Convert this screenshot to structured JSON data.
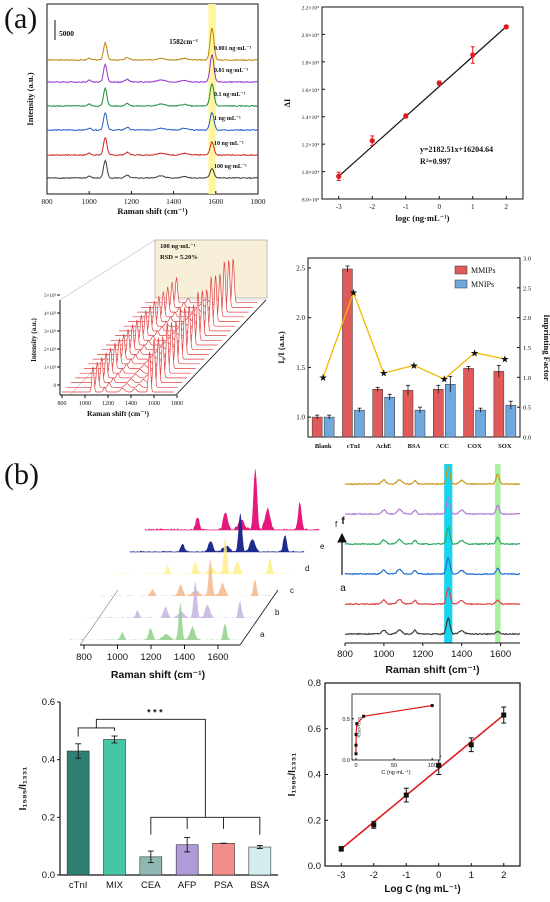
{
  "panel_labels": {
    "a": "(a)",
    "b": "(b)"
  },
  "colors": {
    "raman": [
      "#b8860b",
      "#9b30d0",
      "#1e8c3a",
      "#1f5fc8",
      "#c62828",
      "#3a3a3a"
    ],
    "mmip": "#e05a5a",
    "mnip": "#6fa8dc",
    "factor": "#f5b800",
    "bars_b": [
      "#2f7f72",
      "#45c7a5",
      "#8fb8b2",
      "#b09ad8",
      "#f08c8c",
      "#d4eef0"
    ],
    "line_red": "#e0191c"
  },
  "chart_data": [
    {
      "id": "a1",
      "type": "line",
      "title": "",
      "xlabel": "Raman shift (cm⁻¹)",
      "ylabel": "Intensity (a.u.)",
      "xlim": [
        800,
        1800
      ],
      "xticks": [
        "800",
        "1000",
        "1200",
        "1400",
        "1600",
        "1800"
      ],
      "scale_bar": "5000",
      "annotation": "1582cm⁻¹",
      "peak_positions_cm1": [
        1076,
        1582
      ],
      "series": [
        {
          "name": "0.001 ng·mL⁻¹",
          "peak_1582": 1.0
        },
        {
          "name": "0.01 ng·mL⁻¹",
          "peak_1582": 0.85
        },
        {
          "name": "0.1 ng·mL⁻¹",
          "peak_1582": 0.7
        },
        {
          "name": "1 ng·mL⁻¹",
          "peak_1582": 0.55
        },
        {
          "name": "10 ng·mL⁻¹",
          "peak_1582": 0.4
        },
        {
          "name": "100 ng·mL⁻¹",
          "peak_1582": 0.3
        }
      ]
    },
    {
      "id": "a2",
      "type": "scatter",
      "xlabel": "logc (ng·mL⁻¹)",
      "ylabel": "ΔI",
      "xlim": [
        -3.5,
        2.5
      ],
      "ylim": [
        8000,
        22000
      ],
      "xticks": [
        "-3",
        "-2",
        "-1",
        "0",
        "1",
        "2"
      ],
      "yticks": [
        "8.0×10³",
        "1.0×10⁴",
        "1.2×10⁴",
        "1.4×10⁴",
        "1.6×10⁴",
        "1.8×10⁴",
        "2.0×10⁴",
        "2.2×10⁴"
      ],
      "x": [
        -3,
        -2,
        -1,
        0,
        1,
        2
      ],
      "y": [
        9650,
        12250,
        14050,
        16450,
        18500,
        20550
      ],
      "err": [
        300,
        350,
        150,
        150,
        600,
        100
      ],
      "fit": {
        "slope": 2182.51,
        "intercept": 16204.64
      },
      "equation": "y=2182.51x+16204.64",
      "r2": "R²=0.997"
    },
    {
      "id": "a3",
      "type": "line",
      "xlabel": "Raman shift (cm⁻¹)",
      "ylabel": "Intensity (a.u.)",
      "xticks": [
        "800",
        "1000",
        "1200",
        "1400",
        "1600",
        "1800"
      ],
      "zticks": [
        "0",
        "1×10³",
        "2×10³",
        "3×10³",
        "4×10³",
        "5×10³"
      ],
      "annotation_line1": "100 ng·mL⁻¹",
      "annotation_line2": "RSD = 5.20%",
      "n_spectra": 20
    },
    {
      "id": "a4",
      "type": "bar",
      "xlabel": "",
      "ylabel": "I₀/I (a.u.)",
      "ylabel_right": "Imprinting Factor",
      "categories": [
        "Blank",
        "cTnI",
        "AchE",
        "BSA",
        "CC",
        "COX",
        "SOX"
      ],
      "ylim": [
        0.8,
        2.6
      ],
      "ylim_right": [
        0,
        3.0
      ],
      "yticks": [
        "1.0",
        "1.5",
        "2.0",
        "2.5"
      ],
      "yticks_right": [
        "0.0",
        "0.5",
        "1.0",
        "1.5",
        "2.0",
        "2.5",
        "3.0"
      ],
      "series": [
        {
          "name": "MMIPs",
          "values": [
            1.0,
            2.49,
            1.28,
            1.27,
            1.28,
            1.49,
            1.46
          ],
          "err": [
            0.02,
            0.03,
            0.02,
            0.05,
            0.04,
            0.02,
            0.06
          ]
        },
        {
          "name": "MNIPs",
          "values": [
            1.0,
            1.07,
            1.2,
            1.07,
            1.33,
            1.07,
            1.12
          ],
          "err": [
            0.02,
            0.02,
            0.03,
            0.03,
            0.08,
            0.02,
            0.04
          ]
        }
      ],
      "factor": [
        1.0,
        2.42,
        1.07,
        1.2,
        0.97,
        1.41,
        1.31
      ]
    },
    {
      "id": "b1",
      "type": "line",
      "xlabel": "Raman shift (cm⁻¹)",
      "xticks": [
        "800",
        "1000",
        "1200",
        "1400",
        "1600"
      ],
      "spectra_labels": [
        "a",
        "b",
        "c",
        "d",
        "e",
        "f"
      ]
    },
    {
      "id": "b2",
      "type": "line",
      "xlabel": "Raman shift (cm⁻¹)",
      "xlim": [
        800,
        1700
      ],
      "xticks": [
        "800",
        "1000",
        "1200",
        "1400",
        "1600"
      ],
      "highlight_bands_cm1": [
        1331,
        1585
      ],
      "arrow_labels": [
        "a",
        "f"
      ]
    },
    {
      "id": "b3",
      "type": "bar",
      "ylabel": "I₁₅₈₅/I₁₃₃₁",
      "categories": [
        "cTnI",
        "MIX",
        "CEA",
        "AFP",
        "PSA",
        "BSA"
      ],
      "values": [
        0.43,
        0.47,
        0.063,
        0.105,
        0.11,
        0.097
      ],
      "err": [
        0.025,
        0.012,
        0.02,
        0.025,
        0.0,
        0.005
      ],
      "ylim": [
        0,
        0.6
      ],
      "yticks": [
        "0.0",
        "0.2",
        "0.4",
        "0.6"
      ],
      "significance": "* * *"
    },
    {
      "id": "b4",
      "type": "scatter",
      "xlabel": "Log C (ng mL⁻¹)",
      "ylabel": "I₁₅₈₅/I₁₃₃₁",
      "xlim": [
        -3.5,
        2.5
      ],
      "ylim": [
        0,
        0.8
      ],
      "xticks": [
        "-3",
        "-2",
        "-1",
        "0",
        "1",
        "2"
      ],
      "yticks": [
        "0.0",
        "0.2",
        "0.4",
        "0.6",
        "0.8"
      ],
      "x": [
        -3,
        -2,
        -1,
        0,
        1,
        2
      ],
      "y": [
        0.075,
        0.18,
        0.31,
        0.44,
        0.53,
        0.66
      ],
      "err": [
        0.01,
        0.015,
        0.03,
        0.04,
        0.03,
        0.035
      ],
      "inset": {
        "xlabel": "C (ng mL⁻¹)",
        "ylabel": "I₁₅₈₅/I₁₃₃₁",
        "xticks": [
          "0",
          "50",
          "100"
        ],
        "yticks": [
          "0.0",
          "0.5"
        ],
        "x": [
          0.001,
          0.01,
          0.1,
          1,
          10,
          100
        ],
        "y": [
          0.075,
          0.18,
          0.31,
          0.44,
          0.53,
          0.66
        ]
      }
    }
  ]
}
